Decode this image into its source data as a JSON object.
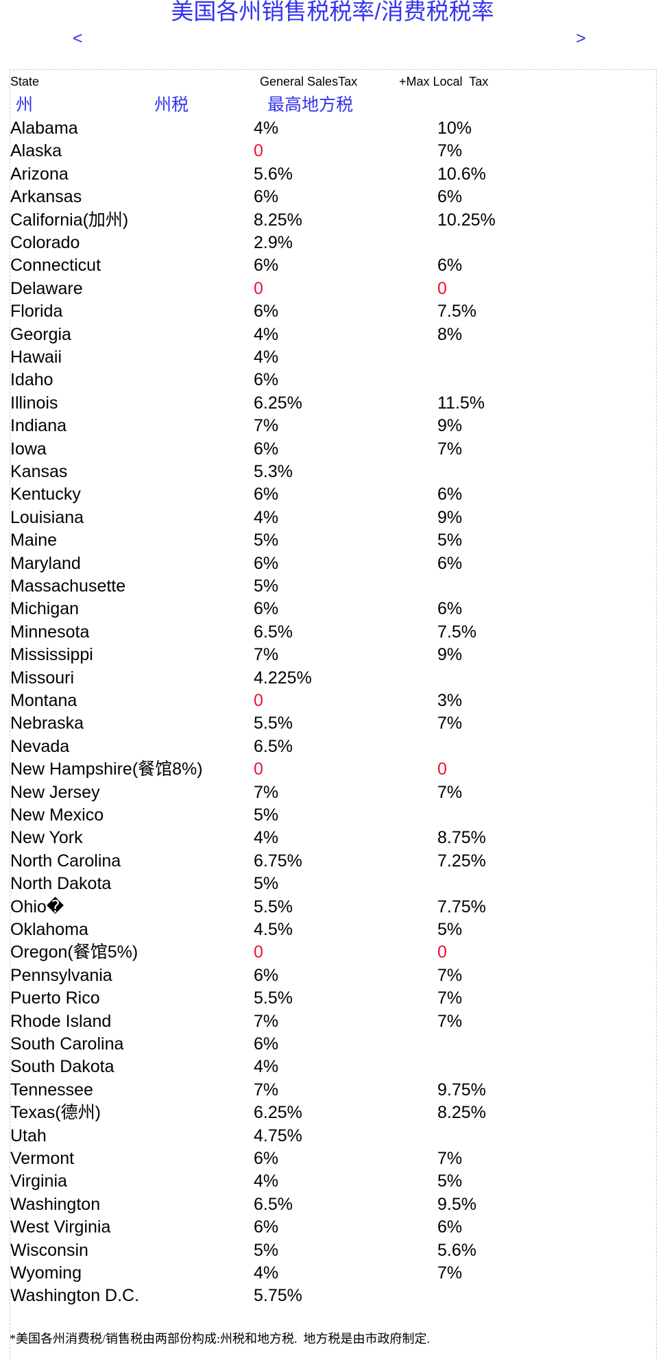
{
  "title": "美国各州销售税税率/消费税税率",
  "nav": {
    "prev": "<",
    "next": ">"
  },
  "header": {
    "english": [
      "State",
      "General SalesTax",
      "+Max Local  Tax"
    ],
    "chinese": [
      "州",
      "州税",
      "最高地方税"
    ]
  },
  "table": {
    "rows": [
      [
        "Alabama",
        "4%",
        "10%"
      ],
      [
        "Alaska",
        "0",
        "7%"
      ],
      [
        "Arizona",
        "5.6%",
        "10.6%"
      ],
      [
        "Arkansas",
        "6%",
        "6%"
      ],
      [
        "California(加州)",
        "8.25%",
        "10.25%"
      ],
      [
        "Colorado",
        "2.9%"
      ],
      [
        "Connecticut",
        "6%",
        "6%"
      ],
      [
        "Delaware",
        "0",
        "0"
      ],
      [
        "Florida",
        "6%",
        "7.5%"
      ],
      [
        "Georgia",
        "4%",
        "8%"
      ],
      [
        "Hawaii",
        "4%"
      ],
      [
        "Idaho",
        "6%"
      ],
      [
        "Illinois",
        "6.25%",
        "11.5%"
      ],
      [
        "Indiana",
        "7%",
        "9%"
      ],
      [
        "Iowa",
        "6%",
        "7%"
      ],
      [
        "Kansas",
        "5.3%"
      ],
      [
        "Kentucky",
        "6%",
        "6%"
      ],
      [
        "Louisiana",
        "4%",
        "9%"
      ],
      [
        "Maine",
        "5%",
        "5%"
      ],
      [
        "Maryland",
        "6%",
        "6%"
      ],
      [
        "Massachusette",
        "5%"
      ],
      [
        "Michigan",
        "6%",
        "6%"
      ],
      [
        "Minnesota",
        "6.5%",
        "7.5%"
      ],
      [
        "Mississippi",
        "7%",
        "9%"
      ],
      [
        "Missouri",
        "4.225%"
      ],
      [
        "Montana",
        "0",
        "3%"
      ],
      [
        "Nebraska",
        "5.5%",
        "7%"
      ],
      [
        "Nevada",
        "6.5%"
      ],
      [
        "New Hampshire(餐馆8%)",
        "0",
        "0"
      ],
      [
        "New Jersey",
        "7%",
        "7%"
      ],
      [
        "New Mexico",
        "5%"
      ],
      [
        "New York",
        "4%",
        "8.75%"
      ],
      [
        "North Carolina",
        "6.75%",
        "7.25%"
      ],
      [
        "North Dakota",
        "5%"
      ],
      [
        "Ohio�",
        "5.5%",
        "7.75%"
      ],
      [
        "Oklahoma",
        "4.5%",
        "5%"
      ],
      [
        "Oregon(餐馆5%)",
        "0",
        "0"
      ],
      [
        "Pennsylvania",
        "6%",
        "7%"
      ],
      [
        "Puerto Rico",
        "5.5%",
        "7%"
      ],
      [
        "Rhode Island",
        "7%",
        "7%"
      ],
      [
        "South Carolina",
        "6%"
      ],
      [
        "South Dakota",
        "4%"
      ],
      [
        "Tennessee",
        "7%",
        "9.75%"
      ],
      [
        "Texas(德州)",
        "6.25%",
        "8.25%"
      ],
      [
        "Utah",
        "4.75%"
      ],
      [
        "Vermont",
        "6%",
        "7%"
      ],
      [
        "Virginia",
        "4%",
        "5%"
      ],
      [
        "Washington",
        "6.5%",
        "9.5%"
      ],
      [
        "West Virginia",
        "6%",
        "6%"
      ],
      [
        "Wisconsin",
        "5%",
        "5.6%"
      ],
      [
        "Wyoming",
        "4%",
        "7%"
      ],
      [
        "Washington D.C.",
        "5.75%"
      ]
    ]
  },
  "footnote": "*美国各州消费税/销售税由两部份构成:州税和地方税.  地方税是由市政府制定."
}
